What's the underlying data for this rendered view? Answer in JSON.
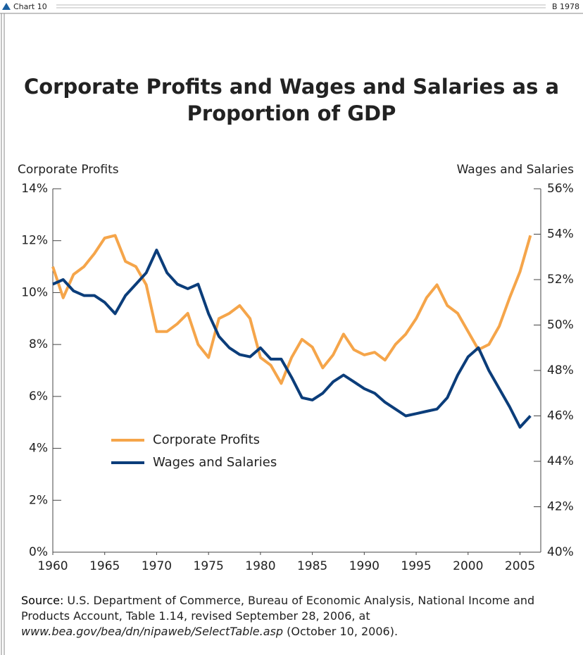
{
  "header": {
    "left": "Chart 10",
    "right": "B 1978"
  },
  "chart_data": {
    "type": "line",
    "title": [
      "Corporate Profits and Wages and Salaries as a",
      "Proportion of GDP"
    ],
    "y_label": "Corporate Profits",
    "y2_label": "Wages and Salaries",
    "x": [
      1960,
      1961,
      1962,
      1963,
      1964,
      1965,
      1966,
      1967,
      1968,
      1969,
      1970,
      1971,
      1972,
      1973,
      1974,
      1975,
      1976,
      1977,
      1978,
      1979,
      1980,
      1981,
      1982,
      1983,
      1984,
      1985,
      1986,
      1987,
      1988,
      1989,
      1990,
      1991,
      1992,
      1993,
      1994,
      1995,
      1996,
      1997,
      1998,
      1999,
      2000,
      2001,
      2002,
      2003,
      2004,
      2005,
      2006
    ],
    "xlim": [
      1960,
      2007
    ],
    "xticks": [
      1960,
      1965,
      1970,
      1975,
      1980,
      1985,
      1990,
      1995,
      2000,
      2005
    ],
    "ylim": [
      0,
      14
    ],
    "yticks": [
      {
        "value": 0,
        "label": "0%"
      },
      {
        "value": 2,
        "label": "2%"
      },
      {
        "value": 4,
        "label": "4%"
      },
      {
        "value": 6,
        "label": "6%"
      },
      {
        "value": 8,
        "label": "8%"
      },
      {
        "value": 10,
        "label": "10%"
      },
      {
        "value": 12,
        "label": "12%"
      },
      {
        "value": 14,
        "label": "14%"
      }
    ],
    "y2lim": [
      40,
      56
    ],
    "y2ticks": [
      {
        "value": 40,
        "label": "40%"
      },
      {
        "value": 42,
        "label": "42%"
      },
      {
        "value": 44,
        "label": "44%"
      },
      {
        "value": 46,
        "label": "46%"
      },
      {
        "value": 48,
        "label": "48%"
      },
      {
        "value": 50,
        "label": "50%"
      },
      {
        "value": 52,
        "label": "52%"
      },
      {
        "value": 54,
        "label": "54%"
      },
      {
        "value": 56,
        "label": "56%"
      }
    ],
    "series": [
      {
        "name": "Corporate Profits",
        "color": "#f5a54a",
        "values": [
          11.0,
          9.8,
          10.7,
          11.0,
          11.5,
          12.1,
          12.2,
          11.2,
          11.0,
          10.3,
          8.5,
          8.5,
          8.8,
          9.2,
          8.0,
          7.5,
          9.0,
          9.2,
          9.5,
          9.0,
          7.5,
          7.2,
          6.5,
          7.5,
          8.2,
          7.9,
          7.1,
          7.6,
          8.4,
          7.8,
          7.6,
          7.7,
          7.4,
          8.0,
          8.4,
          9.0,
          9.8,
          10.3,
          9.5,
          9.2,
          8.5,
          7.8,
          8.0,
          8.7,
          9.8,
          10.8,
          12.2
        ]
      },
      {
        "name": "Wages and Salaries",
        "color": "#0b3d7a",
        "axis": "y2",
        "values": [
          51.8,
          52.0,
          51.5,
          51.3,
          51.3,
          51.0,
          50.5,
          51.3,
          51.8,
          52.3,
          53.3,
          52.3,
          51.8,
          51.6,
          51.8,
          50.5,
          49.5,
          49.0,
          48.7,
          48.6,
          49.0,
          48.5,
          48.5,
          47.7,
          46.8,
          46.7,
          47.0,
          47.5,
          47.8,
          47.5,
          47.2,
          47.0,
          46.6,
          46.3,
          46.0,
          46.1,
          46.2,
          46.3,
          46.8,
          47.8,
          48.6,
          49.0,
          48.0,
          47.2,
          46.4,
          45.5,
          46.0
        ]
      }
    ]
  },
  "source": {
    "label": "Source:",
    "text": " U.S. Department of Commerce, Bureau of Economic Analysis, National Income and Products Account, Table 1.14, revised September 28, 2006, at ",
    "url": "www.bea.gov/bea/dn/nipaweb/SelectTable.asp",
    "date": " (October 10, 2006)."
  }
}
